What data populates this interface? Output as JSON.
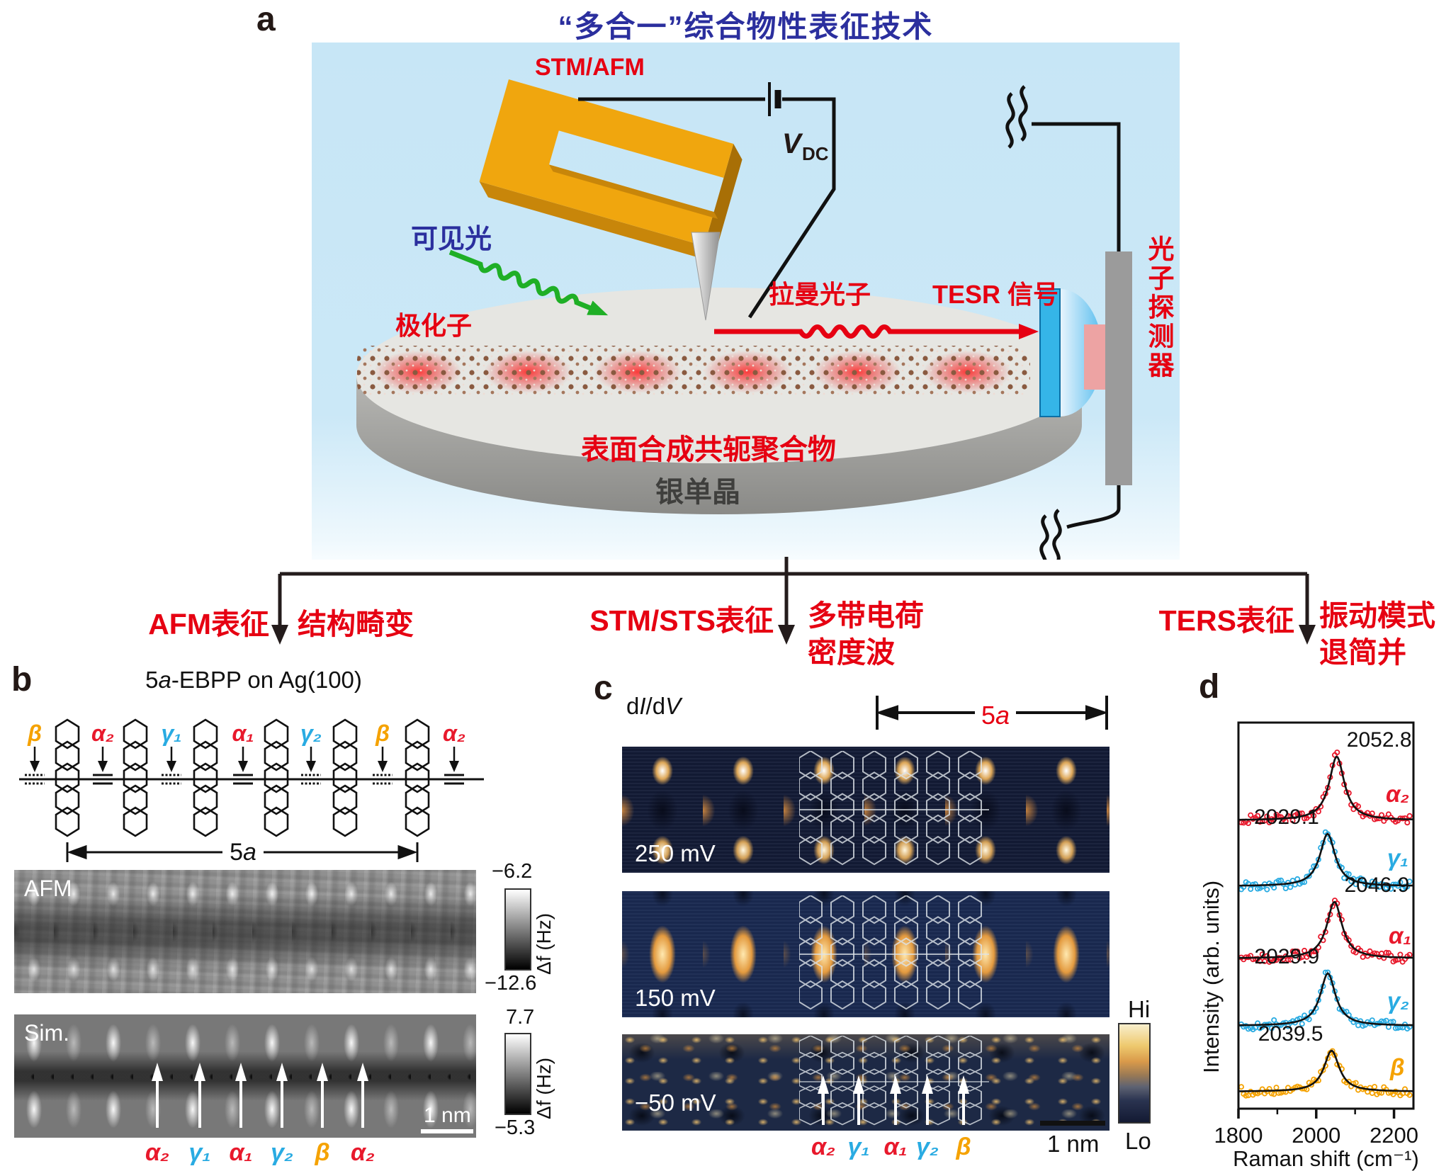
{
  "colors": {
    "red": "#e60012",
    "series_red": "#e8192c",
    "cyan": "#29abe2",
    "orange": "#f5a200",
    "title_blue": "#2b2f9e",
    "fork_orange": "#f0a60e",
    "panel_bg_blue": "#c7e6f6"
  },
  "panel_a": {
    "label": "a",
    "title": "“多合一”综合物性表征技术",
    "stm_afm": "STM/AFM",
    "v_main": "V",
    "v_sub": "DC",
    "visible_light": "可见光",
    "polaron": "极化子",
    "raman_photon": "拉曼光子",
    "tesr_signal": "TESR 信号",
    "photon_detector": "光子探测器",
    "polymer_label": "表面合成共轭聚合物",
    "substrate_label": "银单晶"
  },
  "flow": {
    "afm_technique": "AFM表征",
    "afm_result": "结构畸变",
    "sts_technique": "STM/STS表征",
    "sts_result_line1": "多带电荷",
    "sts_result_line2": "密度波",
    "ters_technique": "TERS表征",
    "ters_result_line1": "振动模式",
    "ters_result_line2": "退简并"
  },
  "panel_b": {
    "label": "b",
    "title_parts": {
      "num": "5",
      "a": "a",
      "rest": "-EBPP on Ag(100)"
    },
    "bond_labels": [
      {
        "text": "β",
        "color": "#f5a200"
      },
      {
        "text": "α₂",
        "color": "#e8192c"
      },
      {
        "text": "γ₁",
        "color": "#29abe2"
      },
      {
        "text": "α₁",
        "color": "#e8192c"
      },
      {
        "text": "γ₂",
        "color": "#29abe2"
      },
      {
        "text": "β",
        "color": "#f5a200"
      },
      {
        "text": "α₂",
        "color": "#e8192c"
      }
    ],
    "span_num": "5",
    "span_a": "a",
    "afm_label": "AFM",
    "afm_scale_top": "−6.2",
    "afm_scale_bottom": "−12.6",
    "afm_scale_unit": "Δf (Hz)",
    "sim_label": "Sim.",
    "sim_scale_top": "7.7",
    "sim_scale_bottom": "−5.3",
    "sim_scale_unit": "Δf (Hz)",
    "scalebar": "1 nm",
    "arrow_labels": [
      {
        "text": "α₂",
        "color": "#e8192c"
      },
      {
        "text": "γ₁",
        "color": "#29abe2"
      },
      {
        "text": "α₁",
        "color": "#e8192c"
      },
      {
        "text": "γ₂",
        "color": "#29abe2"
      },
      {
        "text": "β",
        "color": "#f5a200"
      },
      {
        "text": "α₂",
        "color": "#e8192c"
      }
    ]
  },
  "panel_c": {
    "label": "c",
    "map_label_parts": {
      "d1": "d",
      "i": "I",
      "d2": "/d",
      "v": "V"
    },
    "span_num": "5",
    "span_a": "a",
    "bias_labels": [
      "250 mV",
      "150 mV",
      "−50 mV"
    ],
    "colorbar_hi": "Hi",
    "colorbar_lo": "Lo",
    "scalebar": "1 nm",
    "arrow_labels": [
      {
        "text": "α₂",
        "color": "#e8192c"
      },
      {
        "text": "γ₁",
        "color": "#29abe2"
      },
      {
        "text": "α₁",
        "color": "#e8192c"
      },
      {
        "text": "γ₂",
        "color": "#29abe2"
      },
      {
        "text": "β",
        "color": "#f5a200"
      }
    ]
  },
  "panel_d": {
    "label": "d"
  },
  "chart_data": {
    "type": "line",
    "title": "",
    "xlabel": "Raman shift (cm⁻¹)",
    "ylabel": "Intensity (arb. units)",
    "xlim": [
      1800,
      2250
    ],
    "xticks": [
      1800,
      2000,
      2200
    ],
    "xticks_minor": [
      1900,
      2100
    ],
    "grid": false,
    "legend_position": "right-of-each-curve",
    "note": "five vertically offset TERS spectra, open-circle data with black Lorentzian fits",
    "series": [
      {
        "name": "α₂",
        "color": "#e8192c",
        "peak_center_cm1": 2052.8,
        "annotation": "2052.8",
        "annotation_side": "right",
        "profile": "lorentzian"
      },
      {
        "name": "γ₁",
        "color": "#29abe2",
        "peak_center_cm1": 2029.1,
        "annotation": "2029.1",
        "annotation_side": "left",
        "profile": "lorentzian"
      },
      {
        "name": "α₁",
        "color": "#e8192c",
        "peak_center_cm1": 2046.9,
        "annotation": "2046.9",
        "annotation_side": "right",
        "profile": "lorentzian"
      },
      {
        "name": "γ₂",
        "color": "#29abe2",
        "peak_center_cm1": 2029.9,
        "annotation": "2029.9",
        "annotation_side": "left",
        "profile": "lorentzian"
      },
      {
        "name": "β",
        "color": "#f5a200",
        "peak_center_cm1": 2039.5,
        "annotation": "2039.5",
        "annotation_side": "left",
        "profile": "lorentzian"
      }
    ]
  }
}
